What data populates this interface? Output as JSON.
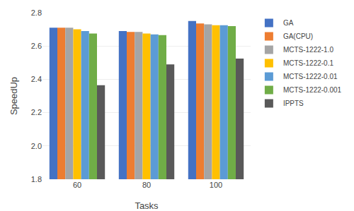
{
  "chart_data": {
    "type": "bar",
    "xlabel": "Tasks",
    "ylabel": "SpeedUp",
    "categories": [
      "60",
      "80",
      "100"
    ],
    "series": [
      {
        "name": "GA",
        "color": "#4472C4",
        "values": [
          2.71,
          2.69,
          2.75
        ]
      },
      {
        "name": "GA(CPU)",
        "color": "#ED7D31",
        "values": [
          2.71,
          2.685,
          2.735
        ]
      },
      {
        "name": "MCTS-1222-1.0",
        "color": "#A5A5A5",
        "values": [
          2.71,
          2.685,
          2.73
        ]
      },
      {
        "name": "MCTS-1222-0.1",
        "color": "#FFC000",
        "values": [
          2.7,
          2.675,
          2.725
        ]
      },
      {
        "name": "MCTS-1222-0.01",
        "color": "#5B9BD5",
        "values": [
          2.69,
          2.67,
          2.725
        ]
      },
      {
        "name": "MCTS-1222-0.001",
        "color": "#70AD47",
        "values": [
          2.675,
          2.665,
          2.72
        ]
      },
      {
        "name": "IPPTS",
        "color": "#595959",
        "values": [
          2.365,
          2.49,
          2.525
        ]
      }
    ],
    "ylim": [
      1.8,
      2.8
    ],
    "yticks": [
      1.8,
      {
        "value": 2.0,
        "label": "2.0"
      },
      2.2,
      2.4,
      2.6,
      2.8
    ],
    "grid": true,
    "legend": "upper right"
  }
}
